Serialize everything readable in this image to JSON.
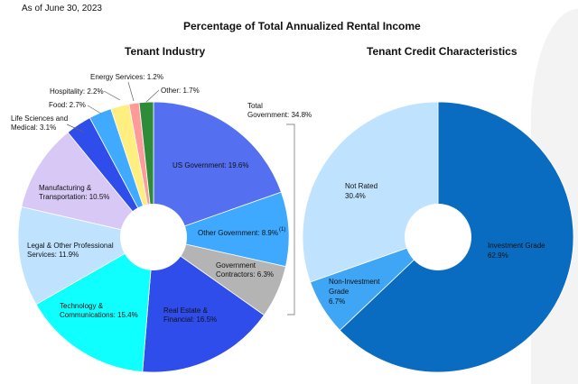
{
  "as_of": "As of June 30, 2023",
  "main_title": "Percentage of Total Annualized Rental Income",
  "chart_data": [
    {
      "type": "pie",
      "title": "Tenant Industry",
      "donut": true,
      "slices": [
        {
          "label": "US Government",
          "value": 19.6,
          "color": "#5470F0"
        },
        {
          "label": "Other Government",
          "value": 8.9,
          "color": "#3FA9FF",
          "note": "(1)"
        },
        {
          "label": "Government Contractors",
          "value": 6.3,
          "color": "#B4B4B4"
        },
        {
          "label": "Real Estate & Financial",
          "value": 16.5,
          "color": "#2F4DEA"
        },
        {
          "label": "Technology & Communications",
          "value": 15.4,
          "color": "#0FFFFF"
        },
        {
          "label": "Legal & Other Professional Services",
          "value": 11.9,
          "color": "#BFE3FF"
        },
        {
          "label": "Manufacturing & Transportation",
          "value": 10.5,
          "color": "#D8C8F6"
        },
        {
          "label": "Life Sciences and Medical",
          "value": 3.1,
          "color": "#2F4DEA"
        },
        {
          "label": "Food",
          "value": 2.7,
          "color": "#3FAAFF"
        },
        {
          "label": "Hospitality",
          "value": 2.2,
          "color": "#FFEF80"
        },
        {
          "label": "Energy Services",
          "value": 1.2,
          "color": "#FF9A9A"
        },
        {
          "label": "Other",
          "value": 1.7,
          "color": "#2E8B3A"
        }
      ],
      "annotation": "Total Government: 34.8%"
    },
    {
      "type": "pie",
      "title": "Tenant Credit Characteristics",
      "donut": true,
      "slices": [
        {
          "label": "Investment Grade",
          "value": 62.9,
          "color": "#0A6CC0"
        },
        {
          "label": "Non-Investment Grade",
          "value": 6.7,
          "color": "#3FA5F5"
        },
        {
          "label": "Not Rated",
          "value": 30.4,
          "color": "#BFE3FF"
        }
      ]
    }
  ],
  "labels": {
    "us_gov": "US Government: 19.6%",
    "other_gov": "Other Government: 8.9%",
    "note": "(1)",
    "gov_con_1": "Government",
    "gov_con_2": "Contractors: 6.3%",
    "re_1": "Real Estate &",
    "re_2": "Financial: 16.5%",
    "tech_1": "Technology &",
    "tech_2": "Communications: 15.4%",
    "legal_1": "Legal & Other Professional",
    "legal_2": "Services: 11.9%",
    "man_1": "Manufacturing &",
    "man_2": "Transportation: 10.5%",
    "life_1": "Life Sciences and",
    "life_2": "Medical: 3.1%",
    "food": "Food: 2.7%",
    "hosp": "Hospitality: 2.2%",
    "energy": "Energy Services: 1.2%",
    "other": "Other: 1.7%",
    "total_1": "Total",
    "total_2": "Government: 34.8%",
    "ig_1": "Investment Grade",
    "ig_2": "62.9%",
    "nig_1": "Non-Investment",
    "nig_2": "Grade",
    "nig_3": "6.7%",
    "nr_1": "Not Rated",
    "nr_2": "30.4%"
  }
}
